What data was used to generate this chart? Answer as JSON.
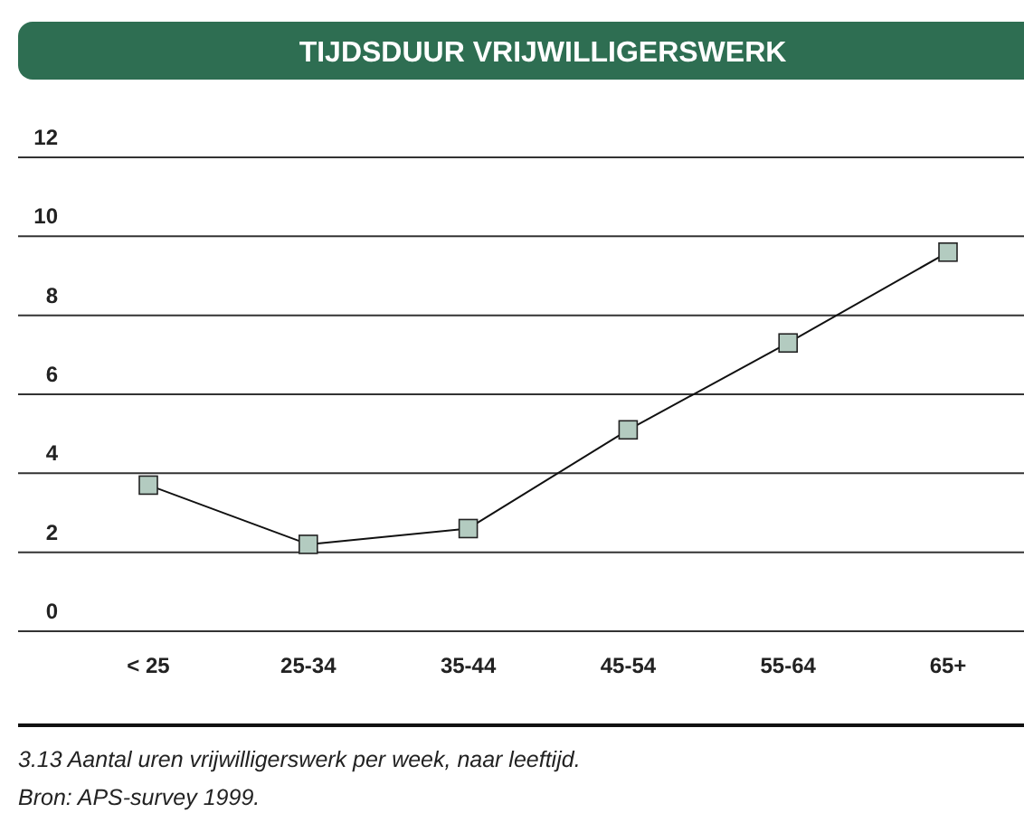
{
  "chart_data": {
    "type": "line",
    "title": "TIJDSDUUR VRIJWILLIGERSWERK",
    "categories": [
      "< 25",
      "25-34",
      "35-44",
      "45-54",
      "55-64",
      "65+"
    ],
    "series": [
      {
        "color": "#b3cbc0",
        "values": [
          3.7,
          2.2,
          2.6,
          5.1,
          7.3,
          9.6
        ]
      }
    ],
    "ylim": [
      0,
      12
    ],
    "yticks": [
      0,
      2,
      4,
      6,
      8,
      10,
      12
    ],
    "grid": "y",
    "marker": "square",
    "line_style": "solid",
    "annotations": [
      "3.13  Aantal uren vrijwilligerswerk per week, naar leeftijd.",
      "Bron: APS-survey 1999."
    ]
  }
}
